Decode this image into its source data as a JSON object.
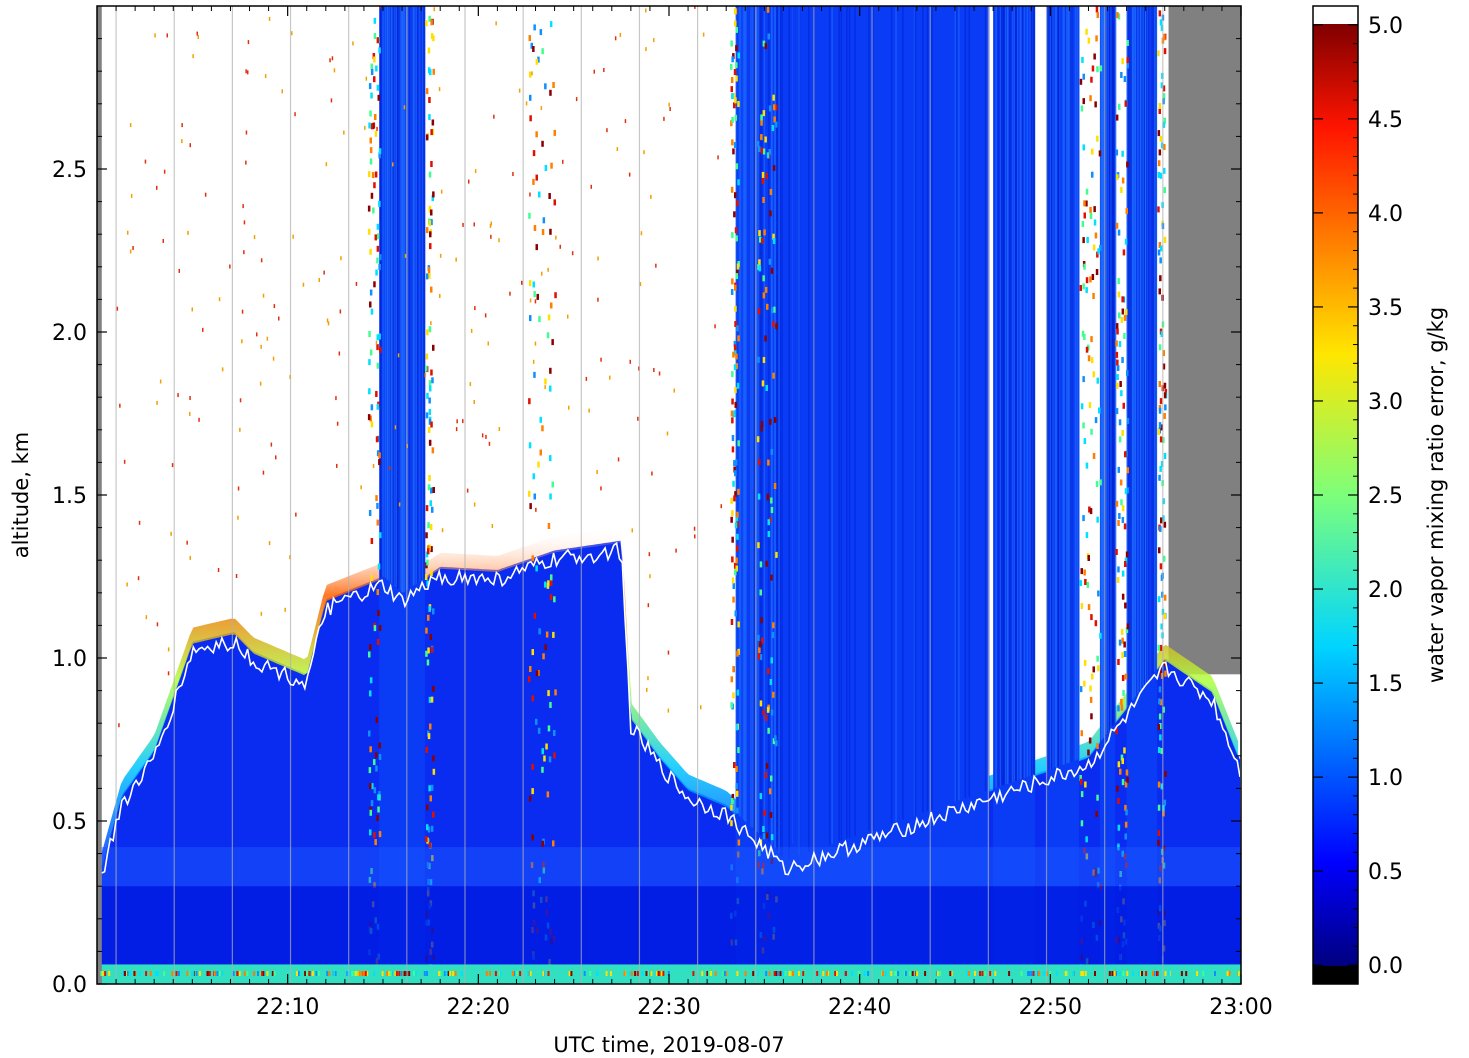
{
  "chart_data": {
    "type": "heatmap",
    "title": "",
    "xlabel": "UTC time,  2019-08-07",
    "ylabel": "altitude, km",
    "x_range": [
      "22:00",
      "23:00"
    ],
    "ylim": [
      0.0,
      3.0
    ],
    "x_ticks": [
      "22:10",
      "22:20",
      "22:30",
      "22:40",
      "22:50",
      "23:00"
    ],
    "y_ticks": [
      "0.0",
      "0.5",
      "1.0",
      "1.5",
      "2.0",
      "2.5"
    ],
    "colorbar": {
      "label": "water vapor mixing ratio error, g/kg",
      "range": [
        -0.1,
        5.1
      ],
      "ticks": [
        "0.0",
        "0.5",
        "1.0",
        "1.5",
        "2.0",
        "2.5",
        "3.0",
        "3.5",
        "4.0",
        "4.5",
        "5.0"
      ],
      "colormap": "jet",
      "over_color": "#ffffff",
      "under_color": "#000000"
    },
    "no_data_color": "#808080",
    "contour_color": "#ffffff",
    "boundary_layer_top_km": [
      [
        0.2,
        0.35
      ],
      [
        1.3,
        0.58
      ],
      [
        3.0,
        0.72
      ],
      [
        4.4,
        0.95
      ],
      [
        5.0,
        1.05
      ],
      [
        7.2,
        1.08
      ],
      [
        8.2,
        1.02
      ],
      [
        11.0,
        0.95
      ],
      [
        12.0,
        1.18
      ],
      [
        15.0,
        1.25
      ],
      [
        16.0,
        1.2
      ],
      [
        18.0,
        1.28
      ],
      [
        21.0,
        1.27
      ],
      [
        24.0,
        1.33
      ],
      [
        27.5,
        1.36
      ],
      [
        28.0,
        0.82
      ],
      [
        29.5,
        0.7
      ],
      [
        31.0,
        0.6
      ],
      [
        33.0,
        0.55
      ],
      [
        34.5,
        0.47
      ],
      [
        35.5,
        0.42
      ],
      [
        36.0,
        0.38
      ],
      [
        52.0,
        0.7
      ],
      [
        56.0,
        1.0
      ],
      [
        58.5,
        0.9
      ],
      [
        60.0,
        0.68
      ]
    ]
  }
}
